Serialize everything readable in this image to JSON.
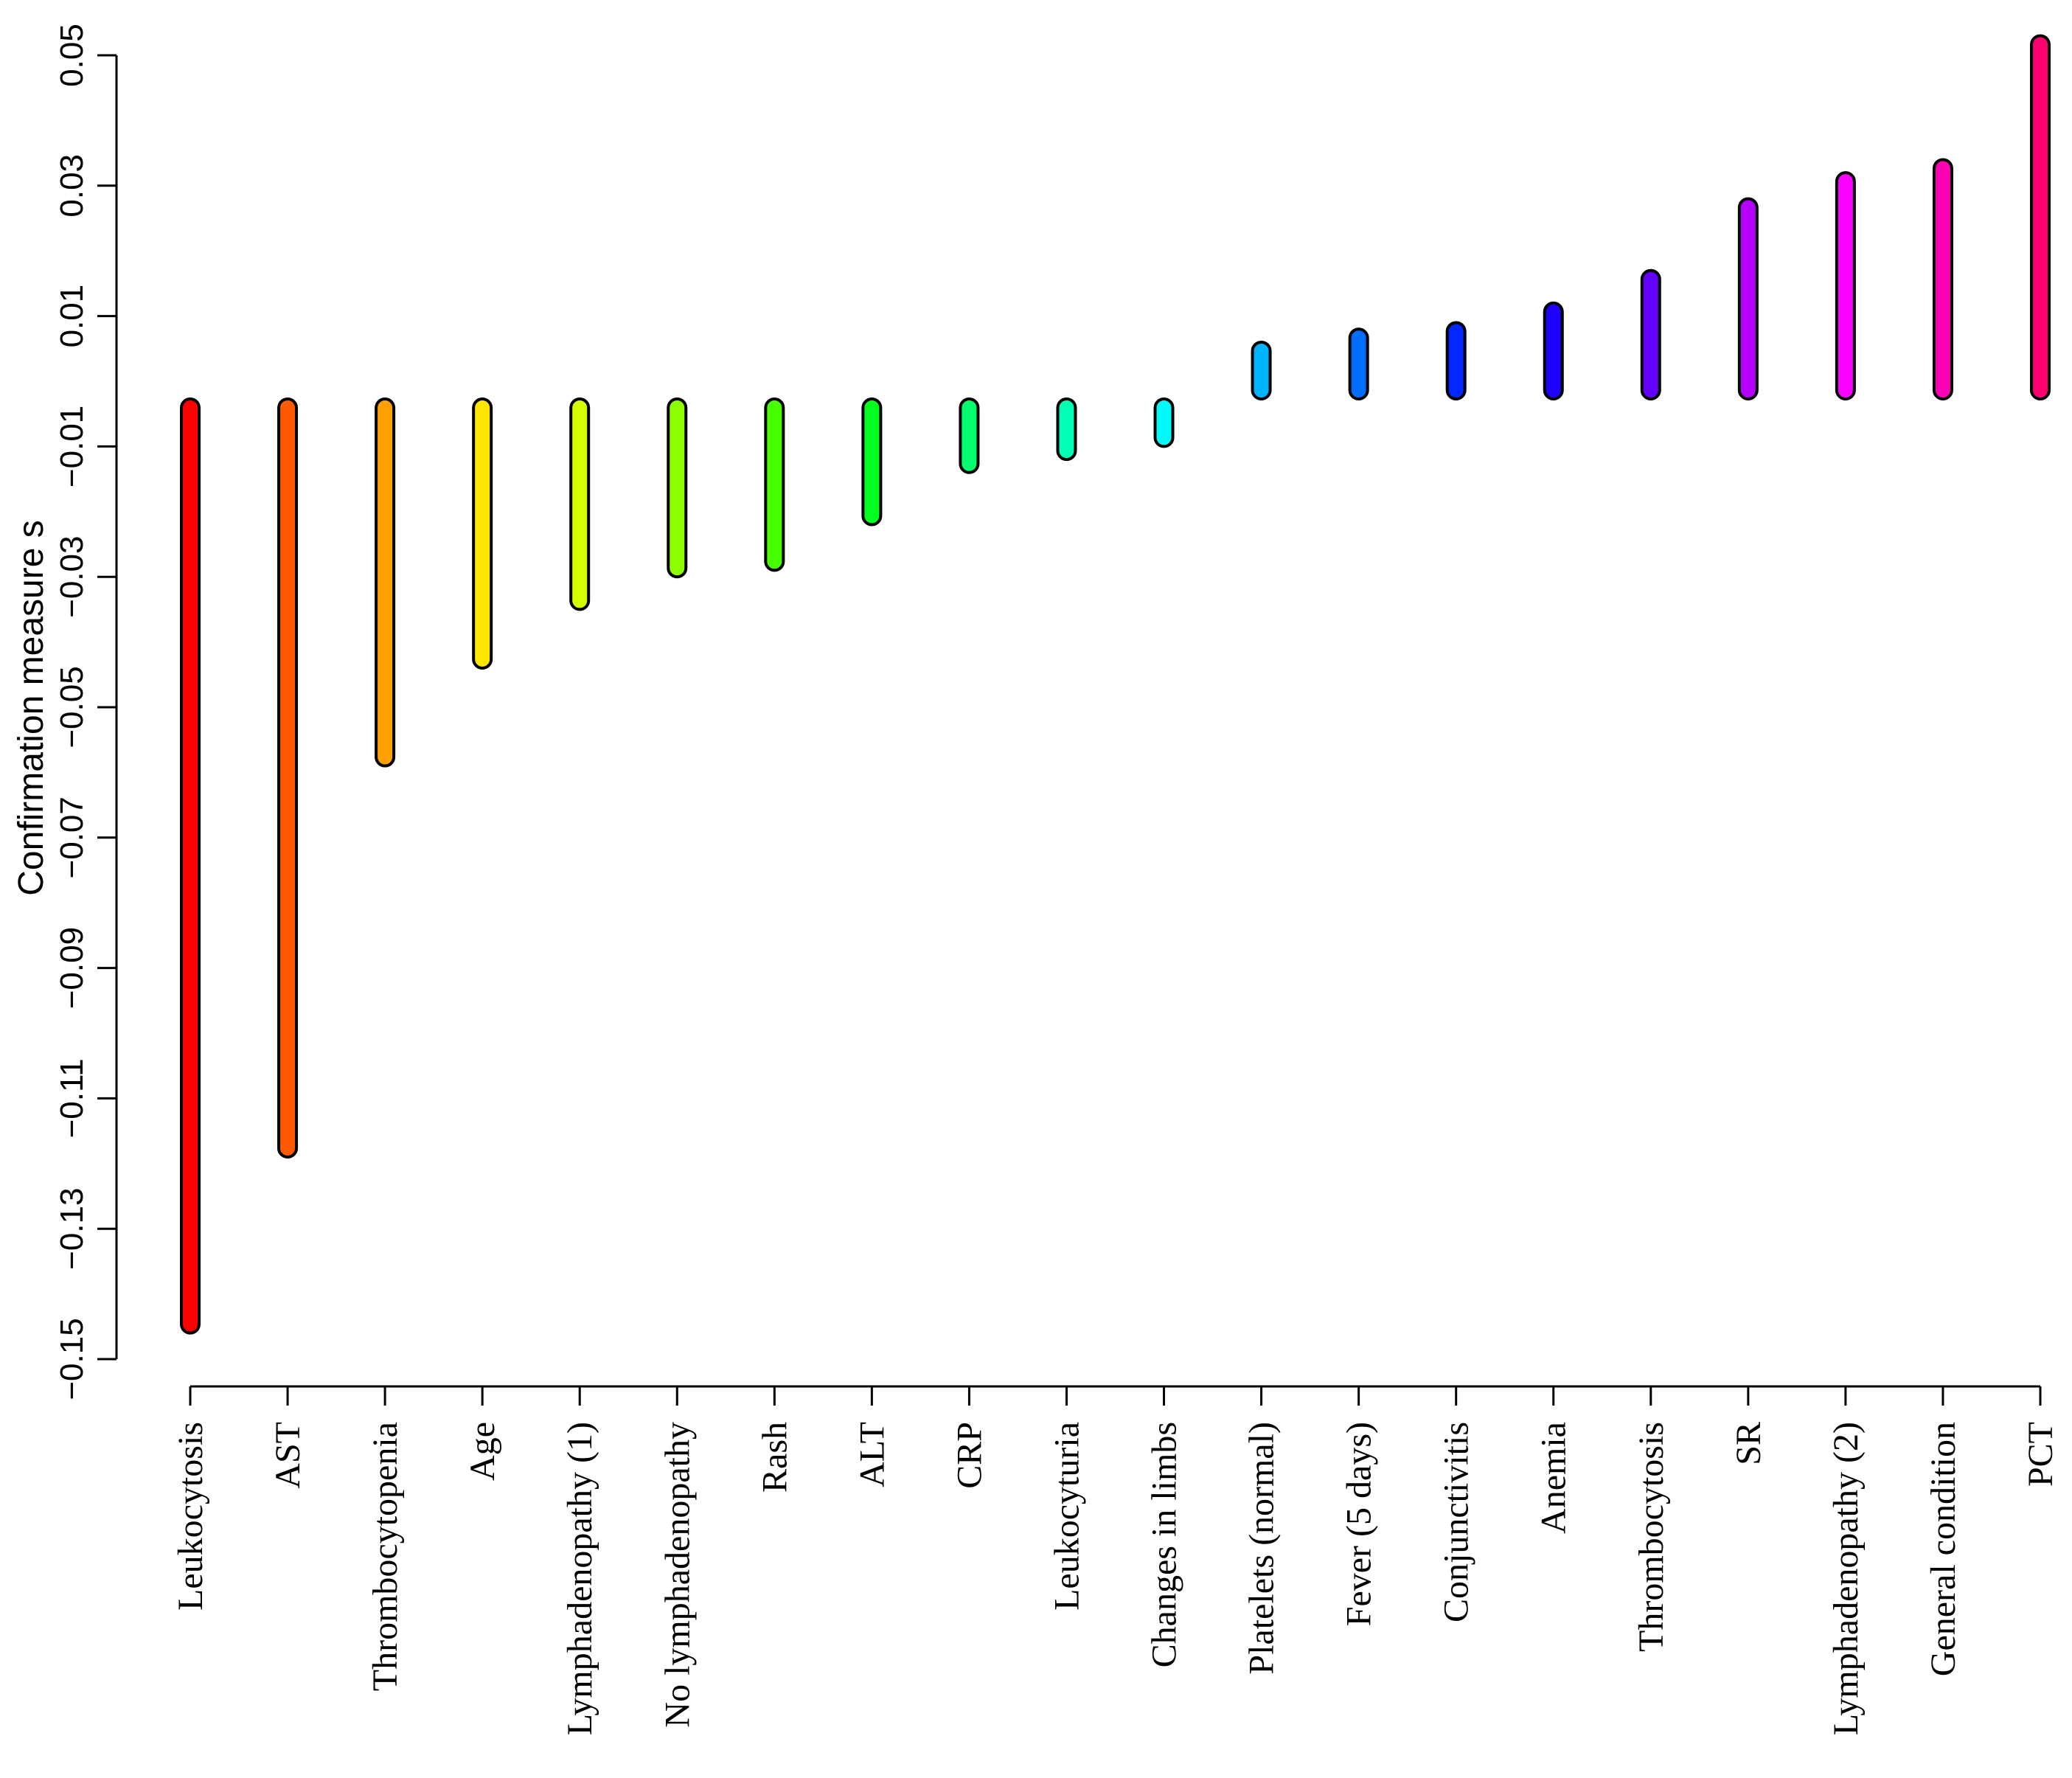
{
  "chart_data": {
    "type": "bar",
    "title": "",
    "xlabel": "",
    "ylabel": "Confirmation measure s",
    "ylim": [
      -0.15,
      0.055
    ],
    "yticks": [
      -0.15,
      -0.13,
      -0.11,
      -0.09,
      -0.07,
      -0.05,
      -0.03,
      -0.01,
      0.01,
      0.03,
      0.05
    ],
    "ytick_labels": [
      "−0.15",
      "−0.13",
      "−0.11",
      "−0.09",
      "−0.07",
      "−0.05",
      "−0.03",
      "−0.01",
      "0.01",
      "0.03",
      "0.05"
    ],
    "grid": false,
    "categories": [
      "Leukocytosis",
      "AST",
      "Thrombocytopenia",
      "Age",
      "Lymphadenopathy (1)",
      "No lymphadenopathy",
      "Rash",
      "ALT",
      "CRP",
      "Leukocyturia",
      "Changes in limbs",
      "Platelets (normal)",
      "Fever (5 days)",
      "Conjunctivitis",
      "Anemia",
      "Thrombocytosis",
      "SR",
      "Lymphadenopathy (2)",
      "General condition",
      "PCT"
    ],
    "values": [
      -0.146,
      -0.119,
      -0.059,
      -0.044,
      -0.035,
      -0.03,
      -0.029,
      -0.022,
      -0.014,
      -0.012,
      -0.01,
      0.006,
      0.008,
      0.009,
      0.012,
      0.017,
      0.028,
      0.032,
      0.034,
      0.053
    ],
    "colors": [
      "#ff0000",
      "#ff5a00",
      "#ffa000",
      "#ffe600",
      "#d4ff00",
      "#8cff00",
      "#46ff00",
      "#00ff1e",
      "#00ff6e",
      "#00ffb4",
      "#00fafa",
      "#00b4ff",
      "#006eff",
      "#0028ff",
      "#1e00ff",
      "#6400ff",
      "#b400ff",
      "#fa00ff",
      "#ff00b4",
      "#ff006e"
    ]
  }
}
